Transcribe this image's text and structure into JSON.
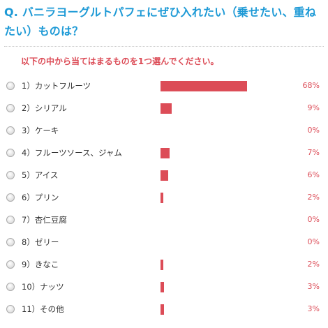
{
  "question": "Q. バニラヨーグルトパフェにぜひ入れたい（乗せたい、重ねたい）ものは？",
  "instruction": "以下の中から当てはまるものを1つ選んでください。",
  "colors": {
    "title": "#1e9ad6",
    "accent": "#dc4c57"
  },
  "bar_scale_max_percent": 68,
  "options": [
    {
      "label": "1）カットフルーツ",
      "percent_text": "68%",
      "percent": 68
    },
    {
      "label": "2）シリアル",
      "percent_text": "9%",
      "percent": 9
    },
    {
      "label": "3）ケーキ",
      "percent_text": "0%",
      "percent": 0
    },
    {
      "label": "4）フルーツソース、ジャム",
      "percent_text": "7%",
      "percent": 7
    },
    {
      "label": "5）アイス",
      "percent_text": "6%",
      "percent": 6
    },
    {
      "label": "6）プリン",
      "percent_text": "2%",
      "percent": 2
    },
    {
      "label": "7）杏仁豆腐",
      "percent_text": "0%",
      "percent": 0
    },
    {
      "label": "8）ゼリー",
      "percent_text": "0%",
      "percent": 0
    },
    {
      "label": "9）きなこ",
      "percent_text": "2%",
      "percent": 2
    },
    {
      "label": "10）ナッツ",
      "percent_text": "3%",
      "percent": 3
    },
    {
      "label": "11）その他",
      "percent_text": "3%",
      "percent": 3
    }
  ]
}
